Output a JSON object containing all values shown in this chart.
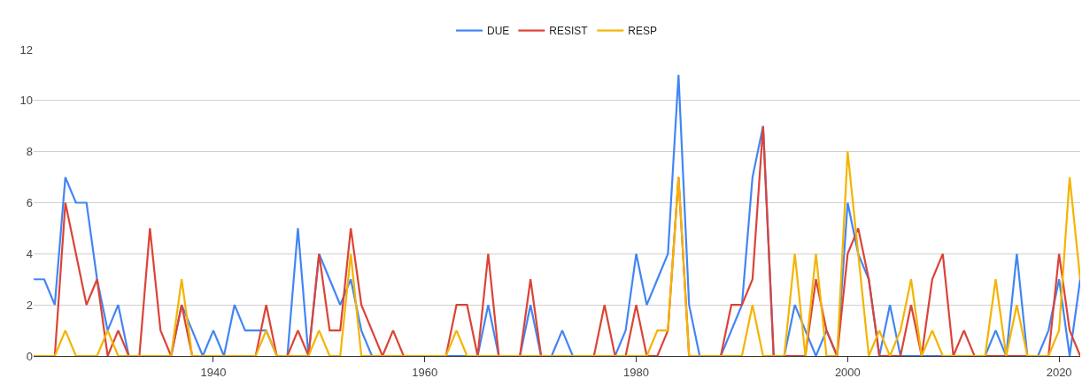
{
  "chart_data": {
    "type": "line",
    "x": [
      1923,
      1924,
      1925,
      1926,
      1927,
      1928,
      1929,
      1930,
      1931,
      1932,
      1933,
      1934,
      1935,
      1936,
      1937,
      1938,
      1939,
      1940,
      1941,
      1942,
      1943,
      1944,
      1945,
      1946,
      1947,
      1948,
      1949,
      1950,
      1951,
      1952,
      1953,
      1954,
      1955,
      1956,
      1957,
      1958,
      1959,
      1960,
      1961,
      1962,
      1963,
      1964,
      1965,
      1966,
      1967,
      1968,
      1969,
      1970,
      1971,
      1972,
      1973,
      1974,
      1975,
      1976,
      1977,
      1978,
      1979,
      1980,
      1981,
      1982,
      1983,
      1984,
      1985,
      1986,
      1987,
      1988,
      1989,
      1990,
      1991,
      1992,
      1993,
      1994,
      1995,
      1996,
      1997,
      1998,
      1999,
      2000,
      2001,
      2002,
      2003,
      2004,
      2005,
      2006,
      2007,
      2008,
      2009,
      2010,
      2011,
      2012,
      2013,
      2014,
      2015,
      2016,
      2017,
      2018,
      2019,
      2020,
      2021,
      2022
    ],
    "series": [
      {
        "name": "DUE",
        "color": "#4285f4",
        "values": [
          3,
          3,
          2,
          7,
          6,
          6,
          3,
          1,
          2,
          0,
          0,
          0,
          0,
          0,
          2,
          1,
          0,
          1,
          0,
          2,
          1,
          1,
          1,
          0,
          0,
          5,
          0,
          4,
          3,
          2,
          3,
          1,
          0,
          0,
          0,
          0,
          0,
          0,
          0,
          0,
          0,
          0,
          0,
          2,
          0,
          0,
          0,
          2,
          0,
          0,
          1,
          0,
          0,
          0,
          0,
          0,
          1,
          4,
          2,
          3,
          4,
          11,
          2,
          0,
          0,
          0,
          1,
          2,
          7,
          9,
          0,
          0,
          2,
          1,
          0,
          1,
          0,
          6,
          4,
          3,
          0,
          2,
          0,
          0,
          0,
          0,
          0,
          0,
          0,
          0,
          0,
          1,
          0,
          4,
          0,
          0,
          1,
          3,
          0,
          3
        ]
      },
      {
        "name": "RESIST",
        "color": "#db4437",
        "values": [
          0,
          0,
          0,
          6,
          4,
          2,
          3,
          0,
          1,
          0,
          0,
          5,
          1,
          0,
          2,
          0,
          0,
          0,
          0,
          0,
          0,
          0,
          2,
          0,
          0,
          1,
          0,
          4,
          1,
          1,
          5,
          2,
          1,
          0,
          1,
          0,
          0,
          0,
          0,
          0,
          2,
          2,
          0,
          4,
          0,
          0,
          0,
          3,
          0,
          0,
          0,
          0,
          0,
          0,
          2,
          0,
          0,
          2,
          0,
          0,
          1,
          7,
          0,
          0,
          0,
          0,
          2,
          2,
          3,
          9,
          0,
          0,
          0,
          0,
          3,
          1,
          0,
          4,
          5,
          3,
          0,
          0,
          0,
          2,
          0,
          3,
          4,
          0,
          1,
          0,
          0,
          0,
          0,
          0,
          0,
          0,
          0,
          4,
          1,
          0
        ]
      },
      {
        "name": "RESP",
        "color": "#f4b400",
        "values": [
          0,
          0,
          0,
          1,
          0,
          0,
          0,
          1,
          0,
          0,
          0,
          0,
          0,
          0,
          3,
          0,
          0,
          0,
          0,
          0,
          0,
          0,
          1,
          0,
          0,
          0,
          0,
          1,
          0,
          0,
          4,
          0,
          0,
          0,
          0,
          0,
          0,
          0,
          0,
          0,
          1,
          0,
          0,
          0,
          0,
          0,
          0,
          0,
          0,
          0,
          0,
          0,
          0,
          0,
          0,
          0,
          0,
          0,
          0,
          1,
          1,
          7,
          0,
          0,
          0,
          0,
          0,
          0,
          2,
          0,
          0,
          0,
          4,
          0,
          4,
          0,
          0,
          8,
          4,
          0,
          1,
          0,
          1,
          3,
          0,
          1,
          0,
          0,
          0,
          0,
          0,
          3,
          0,
          2,
          0,
          0,
          0,
          1,
          7,
          3
        ]
      }
    ],
    "xlim": [
      1923,
      2022
    ],
    "xticks": [
      1940,
      1960,
      1980,
      2000,
      2020
    ],
    "ylim": [
      0,
      12
    ],
    "yticks": [
      0,
      2,
      4,
      6,
      8,
      10,
      12
    ],
    "grid": "y",
    "legend": "top",
    "line_style": "solid"
  }
}
